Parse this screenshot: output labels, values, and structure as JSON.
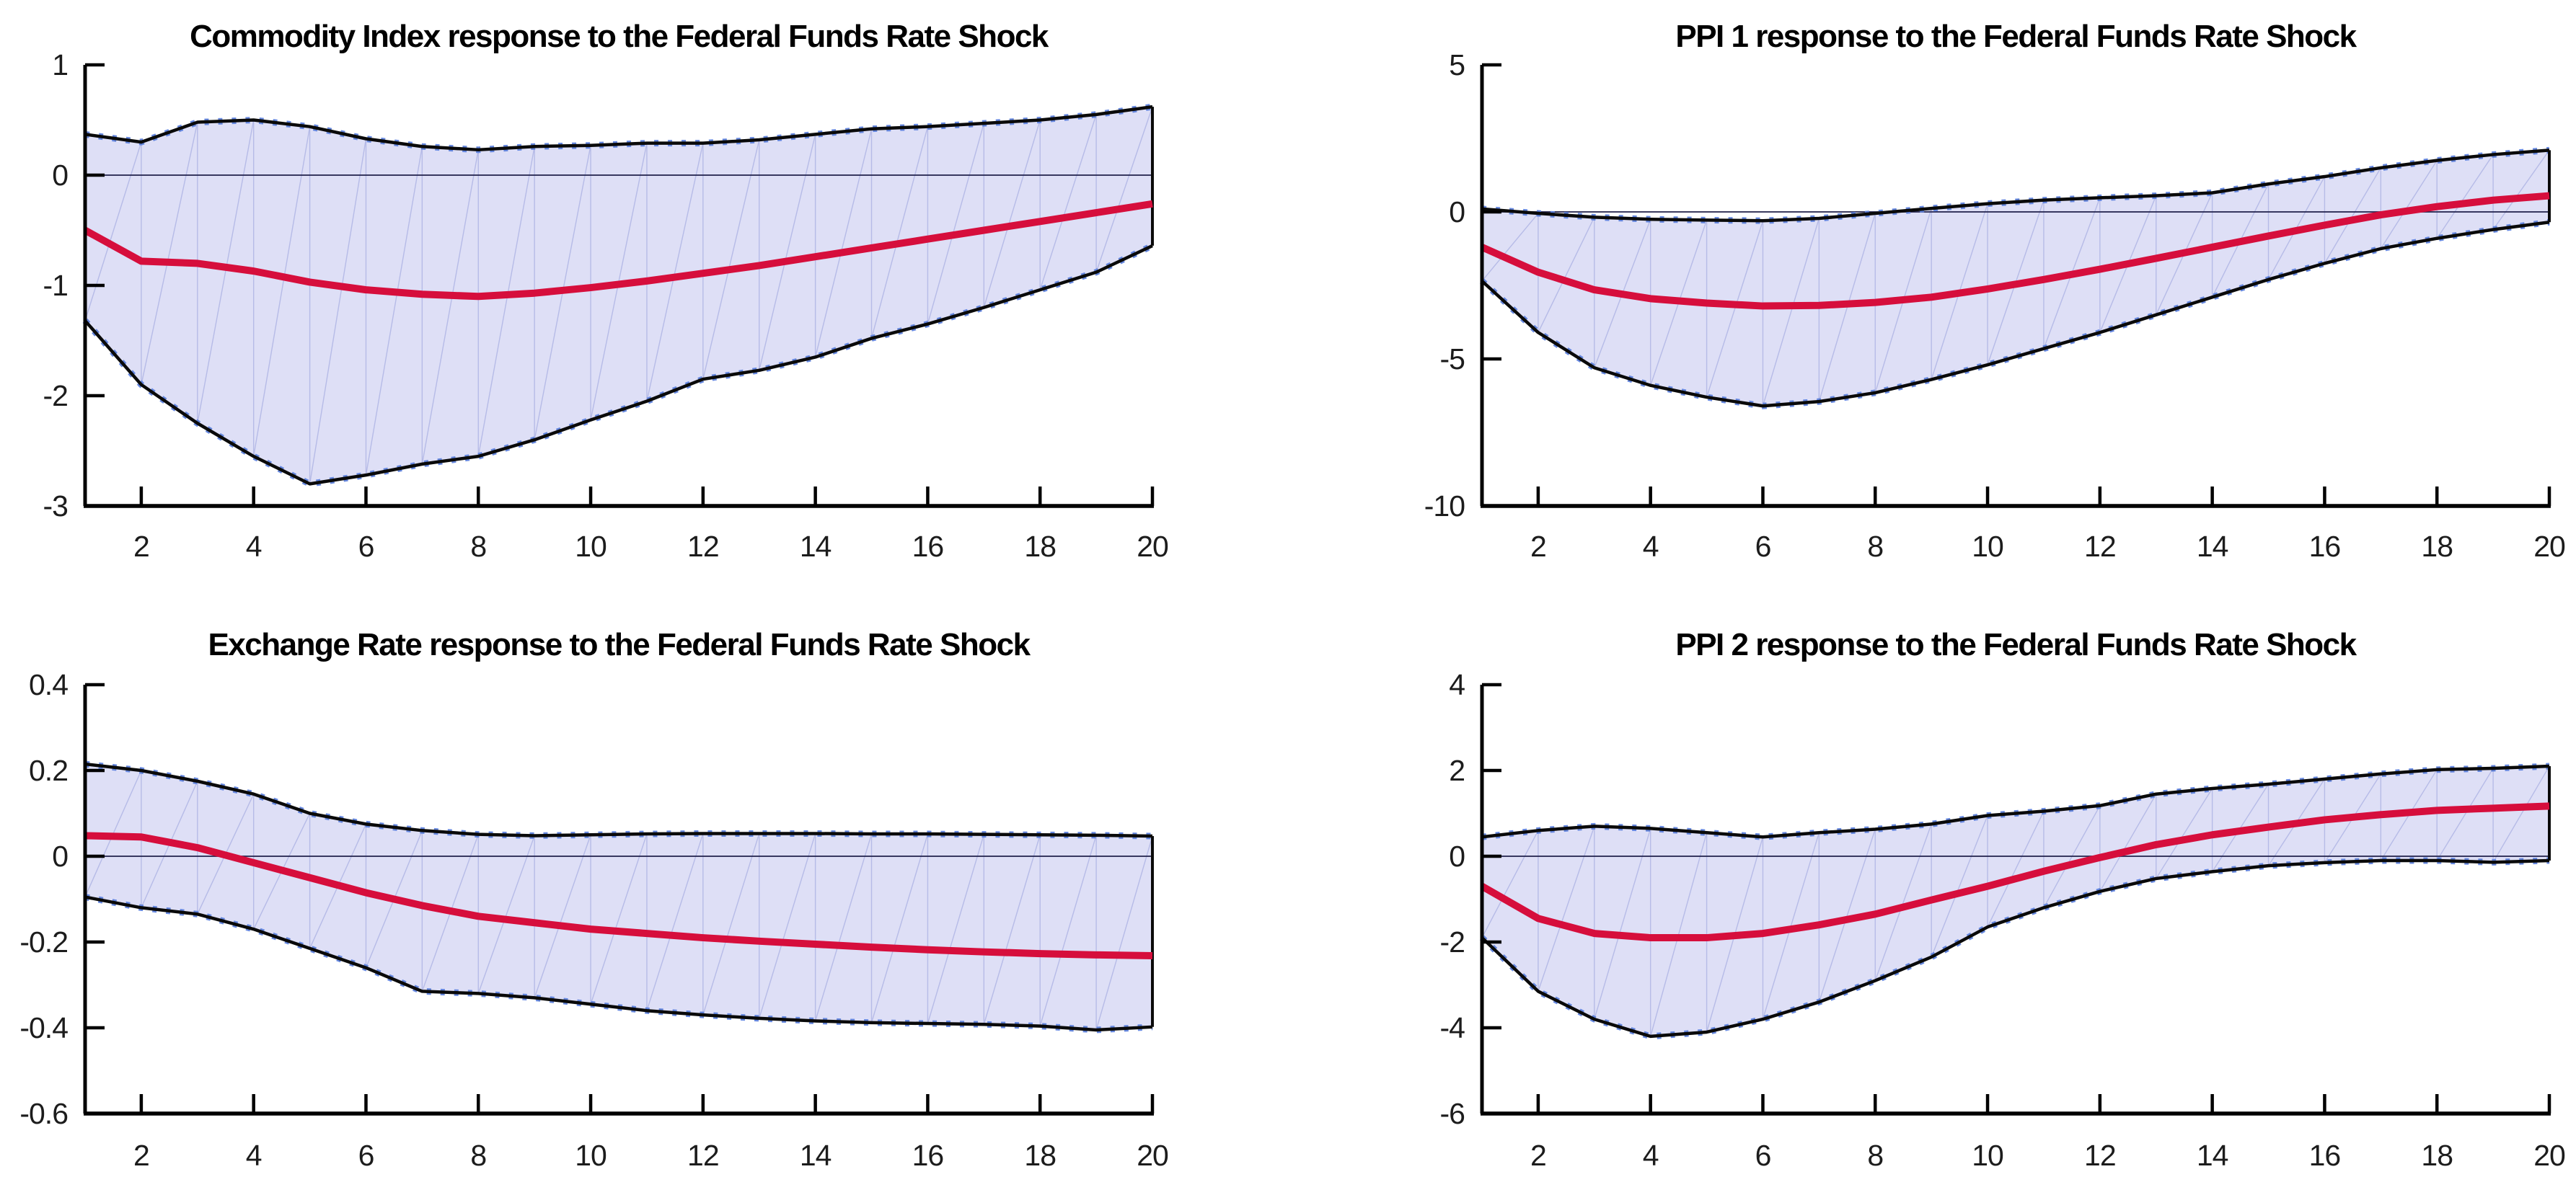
{
  "figure": {
    "background": "#ffffff",
    "colors": {
      "band_fill": "#dedff6",
      "band_hatch": "#a9afe2",
      "band_border": "#0a0a0a",
      "band_marker": "#5e82dd",
      "median_line": "#d60e3c",
      "zero_line": "#20204a",
      "axis": "#000000",
      "tick_label": "#1c1c1c"
    }
  },
  "chart_data": [
    {
      "type": "line",
      "title": "Commodity Index response to the Federal Funds Rate Shock",
      "xlabel": "",
      "ylabel": "",
      "xlim": [
        1,
        20
      ],
      "ylim": [
        -3,
        1
      ],
      "xticks": [
        2,
        4,
        6,
        8,
        10,
        12,
        14,
        16,
        18,
        20
      ],
      "yticks": {
        "values": [
          1,
          0,
          -1,
          -2,
          -3
        ],
        "labels": [
          "1",
          "0",
          "-1",
          "-2",
          "-3"
        ]
      },
      "grid": false,
      "legend_position": "none",
      "x": [
        1,
        2,
        3,
        4,
        5,
        6,
        7,
        8,
        9,
        10,
        11,
        12,
        13,
        14,
        15,
        16,
        17,
        18,
        19,
        20
      ],
      "series": [
        {
          "name": "median",
          "values": [
            -0.5,
            -0.78,
            -0.8,
            -0.87,
            -0.97,
            -1.04,
            -1.08,
            -1.1,
            -1.07,
            -1.02,
            -0.96,
            -0.89,
            -0.82,
            -0.74,
            -0.66,
            -0.58,
            -0.5,
            -0.42,
            -0.34,
            -0.26
          ]
        },
        {
          "name": "upper_band",
          "values": [
            0.37,
            0.3,
            0.48,
            0.5,
            0.44,
            0.33,
            0.26,
            0.23,
            0.26,
            0.27,
            0.29,
            0.29,
            0.32,
            0.37,
            0.42,
            0.44,
            0.47,
            0.5,
            0.55,
            0.62
          ]
        },
        {
          "name": "lower_band",
          "values": [
            -1.32,
            -1.9,
            -2.25,
            -2.55,
            -2.8,
            -2.72,
            -2.62,
            -2.55,
            -2.4,
            -2.22,
            -2.05,
            -1.85,
            -1.77,
            -1.65,
            -1.48,
            -1.35,
            -1.2,
            -1.04,
            -0.88,
            -0.64
          ]
        }
      ]
    },
    {
      "type": "line",
      "title": "PPI 1 response to the Federal Funds Rate Shock",
      "xlabel": "",
      "ylabel": "",
      "xlim": [
        1,
        20
      ],
      "ylim": [
        -10,
        5
      ],
      "xticks": [
        2,
        4,
        6,
        8,
        10,
        12,
        14,
        16,
        18,
        20
      ],
      "yticks": {
        "values": [
          5,
          0,
          -5,
          -10
        ],
        "labels": [
          "5",
          "0",
          "-5",
          "-10"
        ]
      },
      "grid": false,
      "legend_position": "none",
      "x": [
        1,
        2,
        3,
        4,
        5,
        6,
        7,
        8,
        9,
        10,
        11,
        12,
        13,
        14,
        15,
        16,
        17,
        18,
        19,
        20
      ],
      "series": [
        {
          "name": "median",
          "values": [
            -1.2,
            -2.05,
            -2.65,
            -2.95,
            -3.1,
            -3.2,
            -3.18,
            -3.08,
            -2.9,
            -2.62,
            -2.3,
            -1.95,
            -1.58,
            -1.2,
            -0.82,
            -0.45,
            -0.1,
            0.18,
            0.4,
            0.55
          ]
        },
        {
          "name": "upper_band",
          "values": [
            0.1,
            -0.05,
            -0.18,
            -0.25,
            -0.28,
            -0.3,
            -0.22,
            -0.05,
            0.12,
            0.28,
            0.4,
            0.48,
            0.55,
            0.65,
            0.95,
            1.2,
            1.5,
            1.75,
            1.95,
            2.1
          ]
        },
        {
          "name": "lower_band",
          "values": [
            -2.35,
            -4.1,
            -5.3,
            -5.9,
            -6.3,
            -6.6,
            -6.45,
            -6.15,
            -5.7,
            -5.2,
            -4.65,
            -4.1,
            -3.5,
            -2.9,
            -2.3,
            -1.75,
            -1.25,
            -0.9,
            -0.6,
            -0.35
          ]
        }
      ]
    },
    {
      "type": "line",
      "title": "Exchange Rate response to the Federal Funds Rate Shock",
      "xlabel": "",
      "ylabel": "",
      "xlim": [
        1,
        20
      ],
      "ylim": [
        -0.6,
        0.4
      ],
      "xticks": [
        2,
        4,
        6,
        8,
        10,
        12,
        14,
        16,
        18,
        20
      ],
      "yticks": {
        "values": [
          0.4,
          0.2,
          0,
          -0.2,
          -0.4,
          -0.6
        ],
        "labels": [
          "0.4",
          "0.2",
          "0",
          "-0.2",
          "-0.4",
          "-0.6"
        ]
      },
      "grid": false,
      "legend_position": "none",
      "x": [
        1,
        2,
        3,
        4,
        5,
        6,
        7,
        8,
        9,
        10,
        11,
        12,
        13,
        14,
        15,
        16,
        17,
        18,
        19,
        20
      ],
      "series": [
        {
          "name": "median",
          "values": [
            0.048,
            0.045,
            0.02,
            -0.015,
            -0.05,
            -0.085,
            -0.115,
            -0.14,
            -0.155,
            -0.17,
            -0.18,
            -0.19,
            -0.198,
            -0.205,
            -0.212,
            -0.218,
            -0.223,
            -0.227,
            -0.23,
            -0.232
          ]
        },
        {
          "name": "upper_band",
          "values": [
            0.215,
            0.2,
            0.175,
            0.145,
            0.1,
            0.075,
            0.06,
            0.051,
            0.048,
            0.05,
            0.052,
            0.053,
            0.053,
            0.053,
            0.052,
            0.052,
            0.051,
            0.05,
            0.049,
            0.047
          ]
        },
        {
          "name": "lower_band",
          "values": [
            -0.095,
            -0.12,
            -0.135,
            -0.17,
            -0.215,
            -0.26,
            -0.315,
            -0.32,
            -0.33,
            -0.345,
            -0.36,
            -0.37,
            -0.378,
            -0.384,
            -0.388,
            -0.39,
            -0.392,
            -0.396,
            -0.405,
            -0.398
          ]
        }
      ]
    },
    {
      "type": "line",
      "title": "PPI 2 response to the Federal Funds Rate Shock",
      "xlabel": "",
      "ylabel": "",
      "xlim": [
        1,
        20
      ],
      "ylim": [
        -6,
        4
      ],
      "xticks": [
        2,
        4,
        6,
        8,
        10,
        12,
        14,
        16,
        18,
        20
      ],
      "yticks": {
        "values": [
          4,
          2,
          0,
          -2,
          -4,
          -6
        ],
        "labels": [
          "4",
          "2",
          "0",
          "-2",
          "-4",
          "-6"
        ]
      },
      "grid": false,
      "legend_position": "none",
      "x": [
        1,
        2,
        3,
        4,
        5,
        6,
        7,
        8,
        9,
        10,
        11,
        12,
        13,
        14,
        15,
        16,
        17,
        18,
        19,
        20
      ],
      "series": [
        {
          "name": "median",
          "values": [
            -0.7,
            -1.45,
            -1.8,
            -1.9,
            -1.9,
            -1.8,
            -1.6,
            -1.35,
            -1.02,
            -0.7,
            -0.35,
            -0.03,
            0.27,
            0.5,
            0.68,
            0.85,
            0.97,
            1.07,
            1.12,
            1.17
          ]
        },
        {
          "name": "upper_band",
          "values": [
            0.45,
            0.6,
            0.7,
            0.65,
            0.55,
            0.45,
            0.55,
            0.63,
            0.75,
            0.95,
            1.05,
            1.18,
            1.45,
            1.58,
            1.68,
            1.8,
            1.92,
            2.02,
            2.05,
            2.1
          ]
        },
        {
          "name": "lower_band",
          "values": [
            -1.9,
            -3.15,
            -3.8,
            -4.2,
            -4.1,
            -3.8,
            -3.4,
            -2.9,
            -2.35,
            -1.65,
            -1.2,
            -0.82,
            -0.52,
            -0.36,
            -0.22,
            -0.15,
            -0.1,
            -0.1,
            -0.14,
            -0.1
          ]
        }
      ]
    }
  ]
}
